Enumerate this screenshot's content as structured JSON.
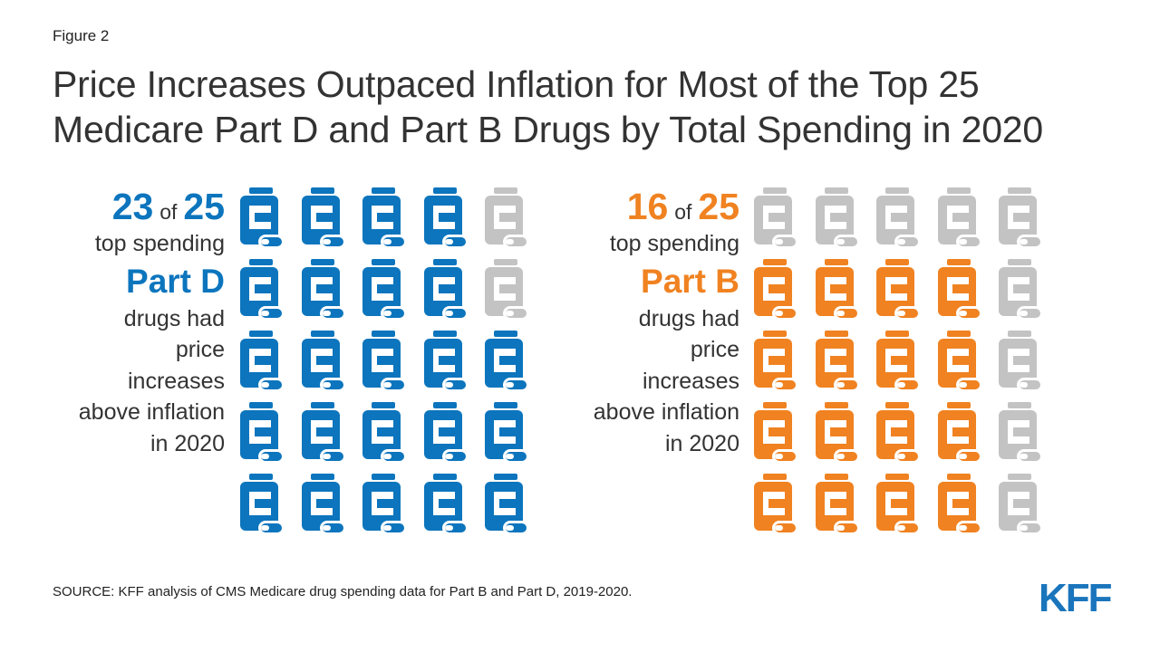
{
  "figure_label": "Figure 2",
  "title_line1": "Price Increases Outpaced Inflation for Most of the Top 25",
  "title_line2": "Medicare Part D and Part B Drugs by Total Spending in 2020",
  "colors": {
    "part_d": "#0c75bd",
    "part_b": "#f08221",
    "inactive": "#c3c3c3",
    "logo": "#1a75bc"
  },
  "panels": {
    "part_d": {
      "count": "23",
      "of_word": "of",
      "total": "25",
      "line_top": "top spending",
      "part": "Part D",
      "line1": "drugs had",
      "line2": "price",
      "line3": "increases",
      "line4": "above inflation",
      "line5": "in 2020"
    },
    "part_b": {
      "count": "16",
      "of_word": "of",
      "total": "25",
      "line_top": "top spending",
      "part": "Part B",
      "line1": "drugs had",
      "line2": "price",
      "line3": "increases",
      "line4": "above inflation",
      "line5": "in 2020"
    }
  },
  "chart_data": [
    {
      "type": "table",
      "series_label": "Part D",
      "value": 23,
      "total": 25,
      "grid": [
        [
          1,
          1,
          1,
          1,
          0
        ],
        [
          1,
          1,
          1,
          1,
          0
        ],
        [
          1,
          1,
          1,
          1,
          1
        ],
        [
          1,
          1,
          1,
          1,
          1
        ],
        [
          1,
          1,
          1,
          1,
          1
        ]
      ]
    },
    {
      "type": "table",
      "series_label": "Part B",
      "value": 16,
      "total": 25,
      "grid": [
        [
          0,
          0,
          0,
          0,
          0
        ],
        [
          1,
          1,
          1,
          1,
          0
        ],
        [
          1,
          1,
          1,
          1,
          0
        ],
        [
          1,
          1,
          1,
          1,
          0
        ],
        [
          1,
          1,
          1,
          1,
          0
        ]
      ]
    }
  ],
  "source": "SOURCE: KFF analysis of CMS Medicare drug spending data for Part B and Part D, 2019-2020.",
  "logo_text": "KFF"
}
